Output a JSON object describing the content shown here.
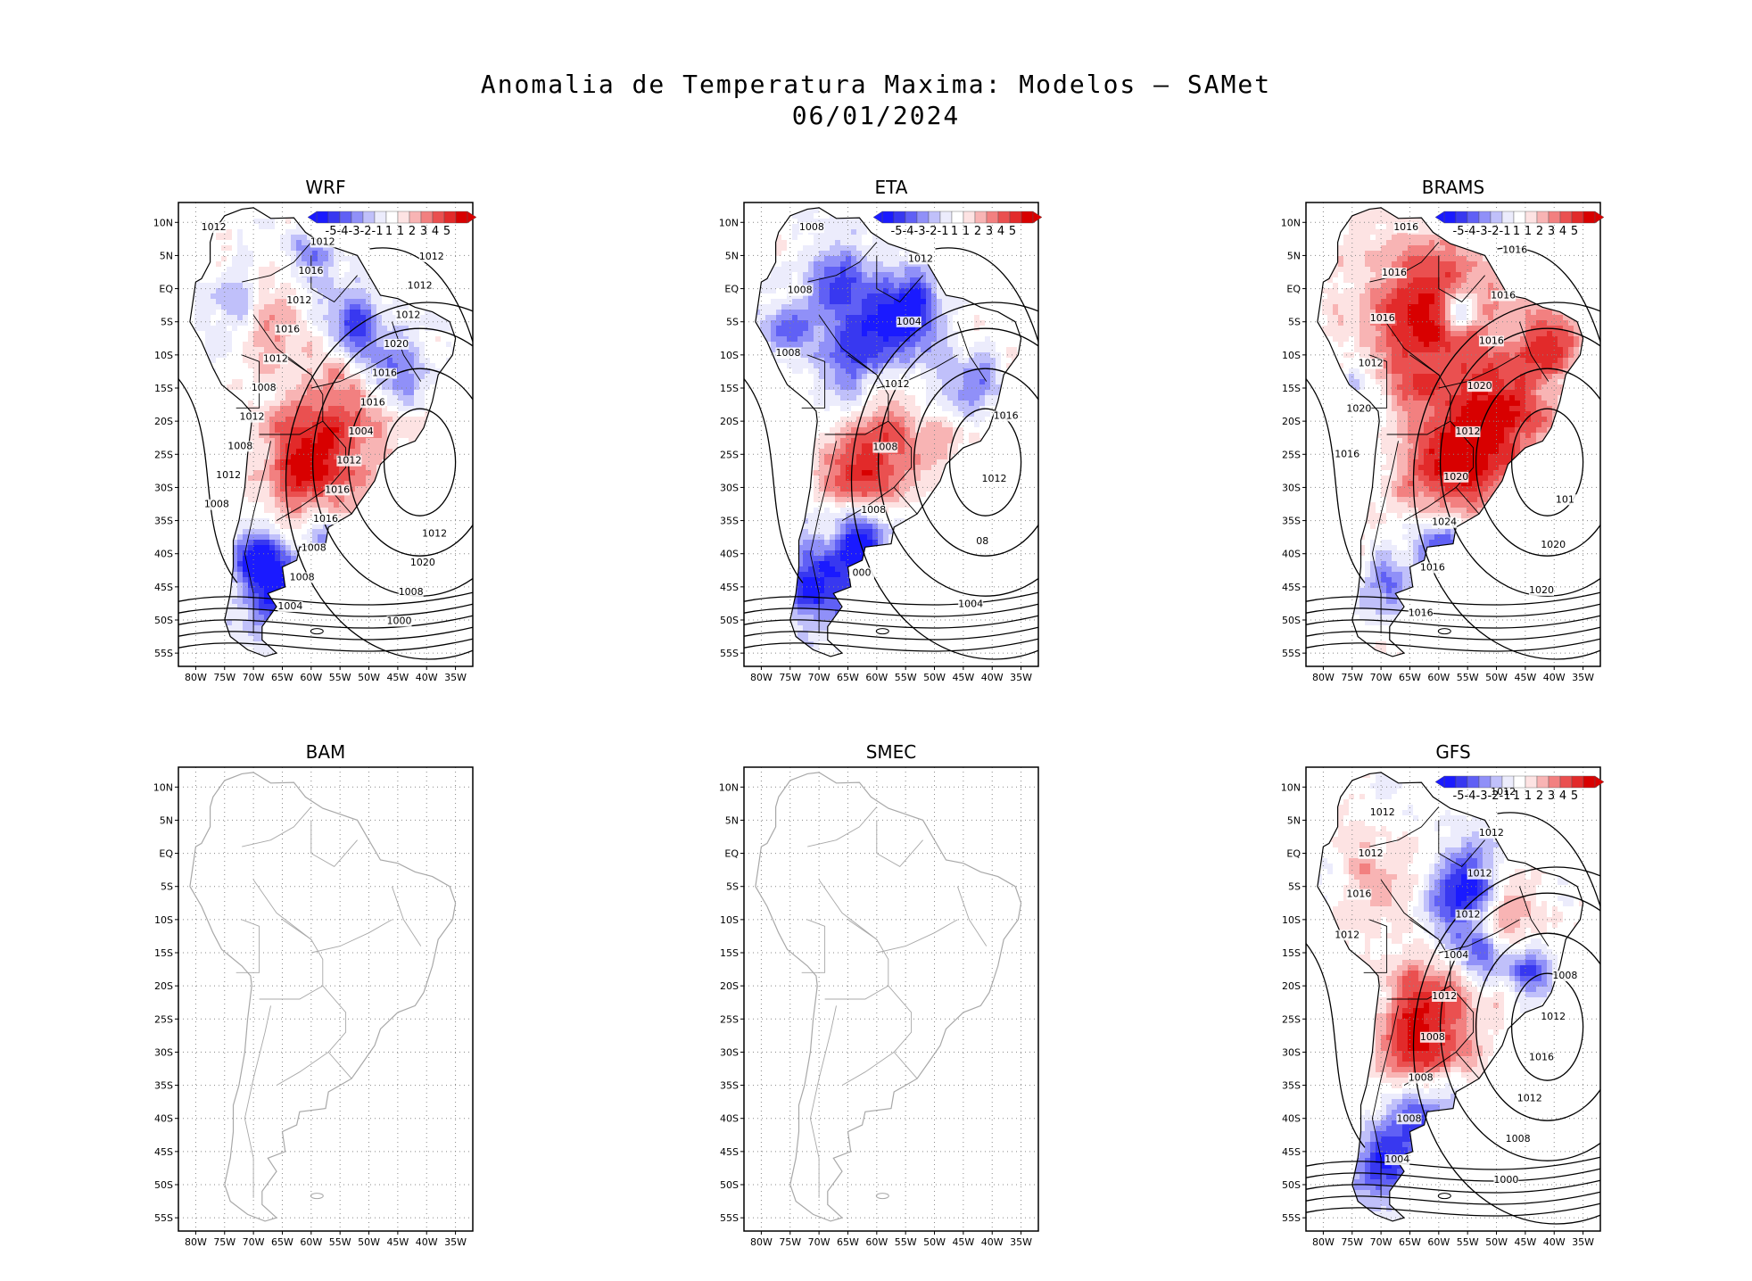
{
  "title_line1": "Anomalia de Temperatura Maxima: Modelos — SAMet",
  "title_line2": "06/01/2024",
  "lat_labels": [
    "10N",
    "5N",
    "EQ",
    "5S",
    "10S",
    "15S",
    "20S",
    "25S",
    "30S",
    "35S",
    "40S",
    "45S",
    "50S",
    "55S"
  ],
  "lon_labels": [
    "80W",
    "75W",
    "70W",
    "65W",
    "60W",
    "55W",
    "50W",
    "45W",
    "40W",
    "35W"
  ],
  "colorbar": {
    "labels": [
      "-5",
      "-4",
      "-3",
      "-2",
      "-1",
      "1",
      "1",
      "2",
      "3",
      "4",
      "5"
    ],
    "colors": [
      "#1a1aff",
      "#3838f0",
      "#6060f5",
      "#9090f8",
      "#c0c0fa",
      "#ececfc",
      "#ffffff",
      "#fde3e3",
      "#f8b4b4",
      "#f28080",
      "#ea5050",
      "#e22a2a",
      "#d80000"
    ]
  },
  "panels": [
    {
      "id": "wrf",
      "name": "WRF",
      "has_data": true,
      "isobars": [
        "1012",
        "1012",
        "1012",
        "1016",
        "1012",
        "1012",
        "1012",
        "1016",
        "1020",
        "1012",
        "1016",
        "1008",
        "1016",
        "1012",
        "1004",
        "1008",
        "1012",
        "1012",
        "1016",
        "1008",
        "1016",
        "1012",
        "1008",
        "1020",
        "1008",
        "1008",
        "1004",
        "1000"
      ]
    },
    {
      "id": "eta",
      "name": "ETA",
      "has_data": true,
      "isobars": [
        "1008",
        "1012",
        "1008",
        "1004",
        "1008",
        "1012",
        "1016",
        "1008",
        "1012",
        "1008",
        "08",
        "000",
        "1004"
      ]
    },
    {
      "id": "brams",
      "name": "BRAMS",
      "has_data": true,
      "isobars": [
        "1016",
        "1016",
        "1016",
        "1016",
        "1016",
        "1016",
        "1012",
        "1020",
        "1020",
        "1012",
        "1016",
        "1020",
        "101",
        "1024",
        "1020",
        "1016",
        "1020",
        "1016"
      ]
    },
    {
      "id": "bam",
      "name": "BAM",
      "has_data": false,
      "isobars": []
    },
    {
      "id": "smec",
      "name": "SMEC",
      "has_data": false,
      "isobars": []
    },
    {
      "id": "gfs",
      "name": "GFS",
      "has_data": true,
      "isobars": [
        "1012",
        "1012",
        "1012",
        "1012",
        "1012",
        "1016",
        "1012",
        "1012",
        "1004",
        "1008",
        "1012",
        "1012",
        "1008",
        "1016",
        "1008",
        "1012",
        "1008",
        "1008",
        "1004",
        "1000"
      ]
    }
  ]
}
